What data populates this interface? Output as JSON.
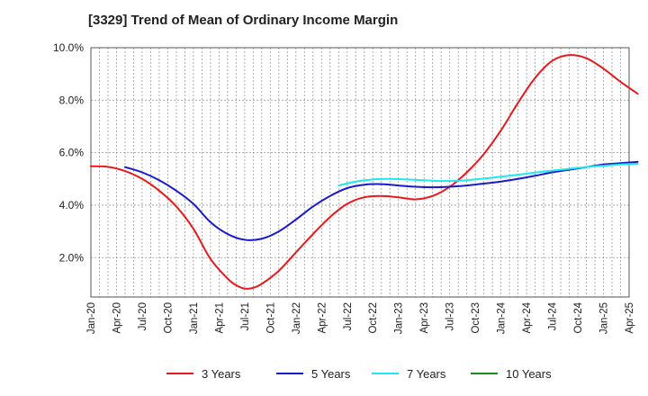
{
  "chart_data": {
    "type": "line",
    "title": "[3329]  Trend of Mean of Ordinary Income Margin",
    "xlabel": "",
    "ylabel": "",
    "ylim": [
      0.5,
      10.0
    ],
    "grid": true,
    "legend_position": "bottom",
    "x_ticks": [
      "Jan-20",
      "Apr-20",
      "Jul-20",
      "Oct-20",
      "Jan-21",
      "Apr-21",
      "Jul-21",
      "Oct-21",
      "Jan-22",
      "Apr-22",
      "Jul-22",
      "Oct-22",
      "Jan-23",
      "Apr-23",
      "Jul-23",
      "Oct-23",
      "Jan-24",
      "Apr-24",
      "Jul-24",
      "Oct-24",
      "Jan-25",
      "Apr-25"
    ],
    "y_ticks": [
      {
        "value": 2.0,
        "label": "2.0%"
      },
      {
        "value": 4.0,
        "label": "4.0%"
      },
      {
        "value": 6.0,
        "label": "6.0%"
      },
      {
        "value": 8.0,
        "label": "8.0%"
      },
      {
        "value": 10.0,
        "label": "10.0%"
      }
    ],
    "series": [
      {
        "name": "3 Years",
        "color": "#e8191c",
        "points": [
          [
            "2020-01",
            5.48
          ],
          [
            "2020-03",
            5.46
          ],
          [
            "2020-05",
            5.3
          ],
          [
            "2020-07",
            5.0
          ],
          [
            "2020-09",
            4.55
          ],
          [
            "2020-11",
            3.95
          ],
          [
            "2021-01",
            3.1
          ],
          [
            "2021-03",
            1.95
          ],
          [
            "2021-05",
            1.2
          ],
          [
            "2021-06",
            0.95
          ],
          [
            "2021-07",
            0.82
          ],
          [
            "2021-08",
            0.85
          ],
          [
            "2021-09",
            1.0
          ],
          [
            "2021-11",
            1.5
          ],
          [
            "2022-01",
            2.2
          ],
          [
            "2022-03",
            2.9
          ],
          [
            "2022-05",
            3.55
          ],
          [
            "2022-07",
            4.05
          ],
          [
            "2022-09",
            4.3
          ],
          [
            "2022-11",
            4.35
          ],
          [
            "2023-01",
            4.3
          ],
          [
            "2023-03",
            4.22
          ],
          [
            "2023-05",
            4.35
          ],
          [
            "2023-07",
            4.7
          ],
          [
            "2023-09",
            5.25
          ],
          [
            "2023-11",
            5.95
          ],
          [
            "2024-01",
            6.85
          ],
          [
            "2024-03",
            7.9
          ],
          [
            "2024-05",
            8.85
          ],
          [
            "2024-07",
            9.5
          ],
          [
            "2024-09",
            9.72
          ],
          [
            "2024-11",
            9.6
          ],
          [
            "2025-01",
            9.2
          ],
          [
            "2025-03",
            8.7
          ],
          [
            "2025-05",
            8.25
          ]
        ]
      },
      {
        "name": "5 Years",
        "color": "#1a1acd",
        "points": [
          [
            "2020-05",
            5.45
          ],
          [
            "2020-07",
            5.25
          ],
          [
            "2020-09",
            4.95
          ],
          [
            "2020-11",
            4.55
          ],
          [
            "2021-01",
            4.05
          ],
          [
            "2021-03",
            3.35
          ],
          [
            "2021-05",
            2.9
          ],
          [
            "2021-07",
            2.68
          ],
          [
            "2021-09",
            2.72
          ],
          [
            "2021-11",
            3.0
          ],
          [
            "2022-01",
            3.45
          ],
          [
            "2022-03",
            3.95
          ],
          [
            "2022-05",
            4.35
          ],
          [
            "2022-07",
            4.65
          ],
          [
            "2022-09",
            4.78
          ],
          [
            "2022-11",
            4.8
          ],
          [
            "2023-01",
            4.75
          ],
          [
            "2023-03",
            4.7
          ],
          [
            "2023-05",
            4.68
          ],
          [
            "2023-07",
            4.7
          ],
          [
            "2023-09",
            4.75
          ],
          [
            "2023-11",
            4.82
          ],
          [
            "2024-01",
            4.9
          ],
          [
            "2024-03",
            5.0
          ],
          [
            "2024-05",
            5.12
          ],
          [
            "2024-07",
            5.25
          ],
          [
            "2024-09",
            5.35
          ],
          [
            "2024-11",
            5.45
          ],
          [
            "2025-01",
            5.55
          ],
          [
            "2025-03",
            5.6
          ],
          [
            "2025-05",
            5.65
          ]
        ]
      },
      {
        "name": "7 Years",
        "color": "#1ee8f0",
        "points": [
          [
            "2022-06",
            4.75
          ],
          [
            "2022-08",
            4.9
          ],
          [
            "2022-10",
            4.98
          ],
          [
            "2022-12",
            5.0
          ],
          [
            "2023-02",
            4.98
          ],
          [
            "2023-04",
            4.95
          ],
          [
            "2023-06",
            4.92
          ],
          [
            "2023-08",
            4.93
          ],
          [
            "2023-10",
            4.98
          ],
          [
            "2023-12",
            5.05
          ],
          [
            "2024-02",
            5.12
          ],
          [
            "2024-04",
            5.2
          ],
          [
            "2024-06",
            5.28
          ],
          [
            "2024-08",
            5.35
          ],
          [
            "2024-10",
            5.42
          ],
          [
            "2024-12",
            5.48
          ],
          [
            "2025-03",
            5.55
          ],
          [
            "2025-05",
            5.58
          ]
        ]
      },
      {
        "name": "10 Years",
        "color": "#1a8a1a",
        "points": []
      }
    ]
  }
}
